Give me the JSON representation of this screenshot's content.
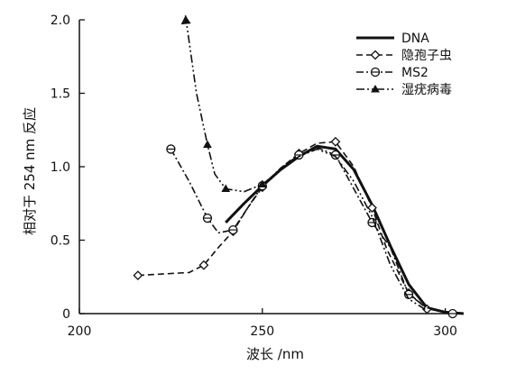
{
  "chart_data": {
    "type": "line",
    "xlabel": "波长 /nm",
    "ylabel": "相对于 254 nm 反应",
    "xlim": [
      200,
      307
    ],
    "ylim": [
      0,
      2.0
    ],
    "x_ticks": [
      200,
      250,
      300
    ],
    "y_ticks": [
      0,
      0.5,
      1.0,
      1.5,
      2.0
    ],
    "x_tick_labels": [
      "200",
      "250",
      "300"
    ],
    "y_tick_labels": [
      "0",
      "0.5",
      "1.0",
      "1.5",
      "2.0"
    ],
    "grid": false,
    "legend_position": "top-right",
    "series": [
      {
        "name": "DNA",
        "style": "solid",
        "marker": "none",
        "x": [
          240,
          245,
          250,
          255,
          260,
          265,
          270,
          275,
          280,
          285,
          290,
          295,
          300,
          305
        ],
        "y": [
          0.62,
          0.75,
          0.87,
          0.98,
          1.07,
          1.14,
          1.12,
          0.98,
          0.74,
          0.46,
          0.2,
          0.04,
          0.01,
          0.0
        ]
      },
      {
        "name": "隐孢子虫",
        "style": "dashed",
        "marker": "diamond",
        "x": [
          216,
          230,
          234,
          238,
          242,
          246,
          250,
          255,
          260,
          265,
          270,
          275,
          280,
          284,
          290,
          295
        ],
        "y": [
          0.26,
          0.28,
          0.33,
          0.45,
          0.56,
          0.72,
          0.86,
          0.99,
          1.09,
          1.16,
          1.17,
          1.0,
          0.72,
          0.44,
          0.14,
          0.03
        ]
      },
      {
        "name": "MS2",
        "style": "dash-dot",
        "marker": "circle",
        "x": [
          225,
          230,
          235,
          238,
          242,
          246,
          250,
          255,
          260,
          265,
          270,
          275,
          280,
          285,
          290,
          295,
          302
        ],
        "y": [
          1.12,
          0.9,
          0.65,
          0.55,
          0.57,
          0.72,
          0.87,
          0.99,
          1.08,
          1.13,
          1.08,
          0.85,
          0.62,
          0.45,
          0.13,
          0.04,
          0.0
        ]
      },
      {
        "name": "湿疣病毒",
        "style": "dash-dot-dot",
        "marker": "triangle",
        "x": [
          229,
          230,
          232,
          235,
          237,
          240,
          245,
          250,
          255,
          260,
          265,
          270,
          275,
          280,
          285,
          290,
          295
        ],
        "y": [
          2.03,
          1.85,
          1.5,
          1.15,
          0.95,
          0.85,
          0.83,
          0.88,
          0.98,
          1.07,
          1.12,
          1.07,
          0.9,
          0.66,
          0.33,
          0.1,
          0.02
        ]
      }
    ]
  }
}
